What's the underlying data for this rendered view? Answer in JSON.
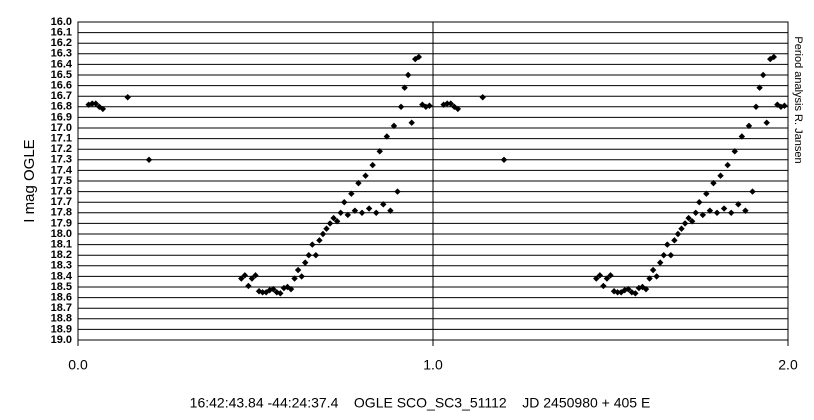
{
  "chart_data": {
    "type": "scatter",
    "y_label": "I mag OGLE",
    "side_note": "Period analysis R. Jansen",
    "footer": "16:42:43.84 -44:24:37.4    OGLE SCO_SC3_51112    JD 2450980 + 405 E",
    "color": "#000000",
    "xlim": [
      0,
      2
    ],
    "xticks": [
      {
        "value": 0,
        "label": "0.0"
      },
      {
        "value": 1,
        "label": "1.0"
      },
      {
        "value": 2,
        "label": "2.0"
      }
    ],
    "ylim": [
      16,
      19
    ],
    "y_reversed": true,
    "yticks": [
      {
        "value": 16,
        "label": "16.0"
      },
      16.1,
      16.2,
      16.3,
      16.4,
      16.5,
      16.6,
      16.7,
      16.8,
      16.9,
      {
        "value": 17,
        "label": "17.0"
      },
      17.1,
      17.2,
      17.3,
      17.4,
      17.5,
      17.6,
      17.7,
      17.8,
      17.9,
      {
        "value": 18,
        "label": "18.0"
      },
      18.1,
      18.2,
      18.3,
      18.4,
      18.5,
      18.6,
      18.7,
      18.8,
      18.9,
      {
        "value": 19,
        "label": "19.0"
      }
    ],
    "grid": true,
    "x": [
      0.03,
      0.04,
      0.05,
      0.06,
      0.07,
      0.14,
      0.2,
      0.46,
      0.47,
      0.48,
      0.49,
      0.5,
      0.51,
      0.52,
      0.53,
      0.54,
      0.55,
      0.56,
      0.57,
      0.58,
      0.59,
      0.6,
      0.61,
      0.62,
      0.63,
      0.64,
      0.65,
      0.66,
      0.67,
      0.68,
      0.69,
      0.7,
      0.71,
      0.72,
      0.73,
      0.74,
      0.75,
      0.76,
      0.77,
      0.78,
      0.79,
      0.8,
      0.81,
      0.82,
      0.83,
      0.84,
      0.85,
      0.86,
      0.87,
      0.88,
      0.89,
      0.9,
      0.91,
      0.92,
      0.93,
      0.94,
      0.95,
      0.96,
      0.97,
      0.98,
      0.99,
      1.03,
      1.04,
      1.05,
      1.06,
      1.07,
      1.14,
      1.2,
      1.46,
      1.47,
      1.48,
      1.49,
      1.5,
      1.51,
      1.52,
      1.53,
      1.54,
      1.55,
      1.56,
      1.57,
      1.58,
      1.59,
      1.6,
      1.61,
      1.62,
      1.63,
      1.64,
      1.65,
      1.66,
      1.67,
      1.68,
      1.69,
      1.7,
      1.71,
      1.72,
      1.73,
      1.74,
      1.75,
      1.76,
      1.77,
      1.78,
      1.79,
      1.8,
      1.81,
      1.82,
      1.83,
      1.84,
      1.85,
      1.86,
      1.87,
      1.88,
      1.89,
      1.9,
      1.91,
      1.92,
      1.93,
      1.94,
      1.95,
      1.96,
      1.97,
      1.98,
      1.99
    ],
    "values": [
      16.78,
      16.77,
      16.77,
      16.8,
      16.82,
      16.71,
      17.3,
      18.42,
      18.39,
      18.49,
      18.42,
      18.39,
      18.54,
      18.55,
      18.55,
      18.53,
      18.52,
      18.55,
      18.56,
      18.51,
      18.5,
      18.52,
      18.42,
      18.34,
      18.4,
      18.27,
      18.2,
      18.1,
      18.2,
      18.06,
      18.0,
      17.95,
      17.9,
      17.85,
      17.88,
      17.8,
      17.7,
      17.82,
      17.62,
      17.78,
      17.52,
      17.8,
      17.45,
      17.76,
      17.35,
      17.8,
      17.22,
      17.72,
      17.08,
      17.78,
      16.98,
      17.6,
      16.8,
      16.62,
      16.5,
      16.95,
      16.35,
      16.33,
      16.78,
      16.8,
      16.79,
      16.78,
      16.77,
      16.77,
      16.8,
      16.82,
      16.71,
      17.3,
      18.42,
      18.39,
      18.49,
      18.42,
      18.39,
      18.54,
      18.55,
      18.55,
      18.53,
      18.52,
      18.55,
      18.56,
      18.51,
      18.5,
      18.52,
      18.42,
      18.34,
      18.4,
      18.27,
      18.2,
      18.1,
      18.2,
      18.06,
      18.0,
      17.95,
      17.9,
      17.85,
      17.88,
      17.8,
      17.7,
      17.82,
      17.62,
      17.78,
      17.52,
      17.8,
      17.45,
      17.76,
      17.35,
      17.8,
      17.22,
      17.72,
      17.08,
      17.78,
      16.98,
      17.6,
      16.8,
      16.62,
      16.5,
      16.95,
      16.35,
      16.33,
      16.78,
      16.8,
      16.79
    ]
  }
}
